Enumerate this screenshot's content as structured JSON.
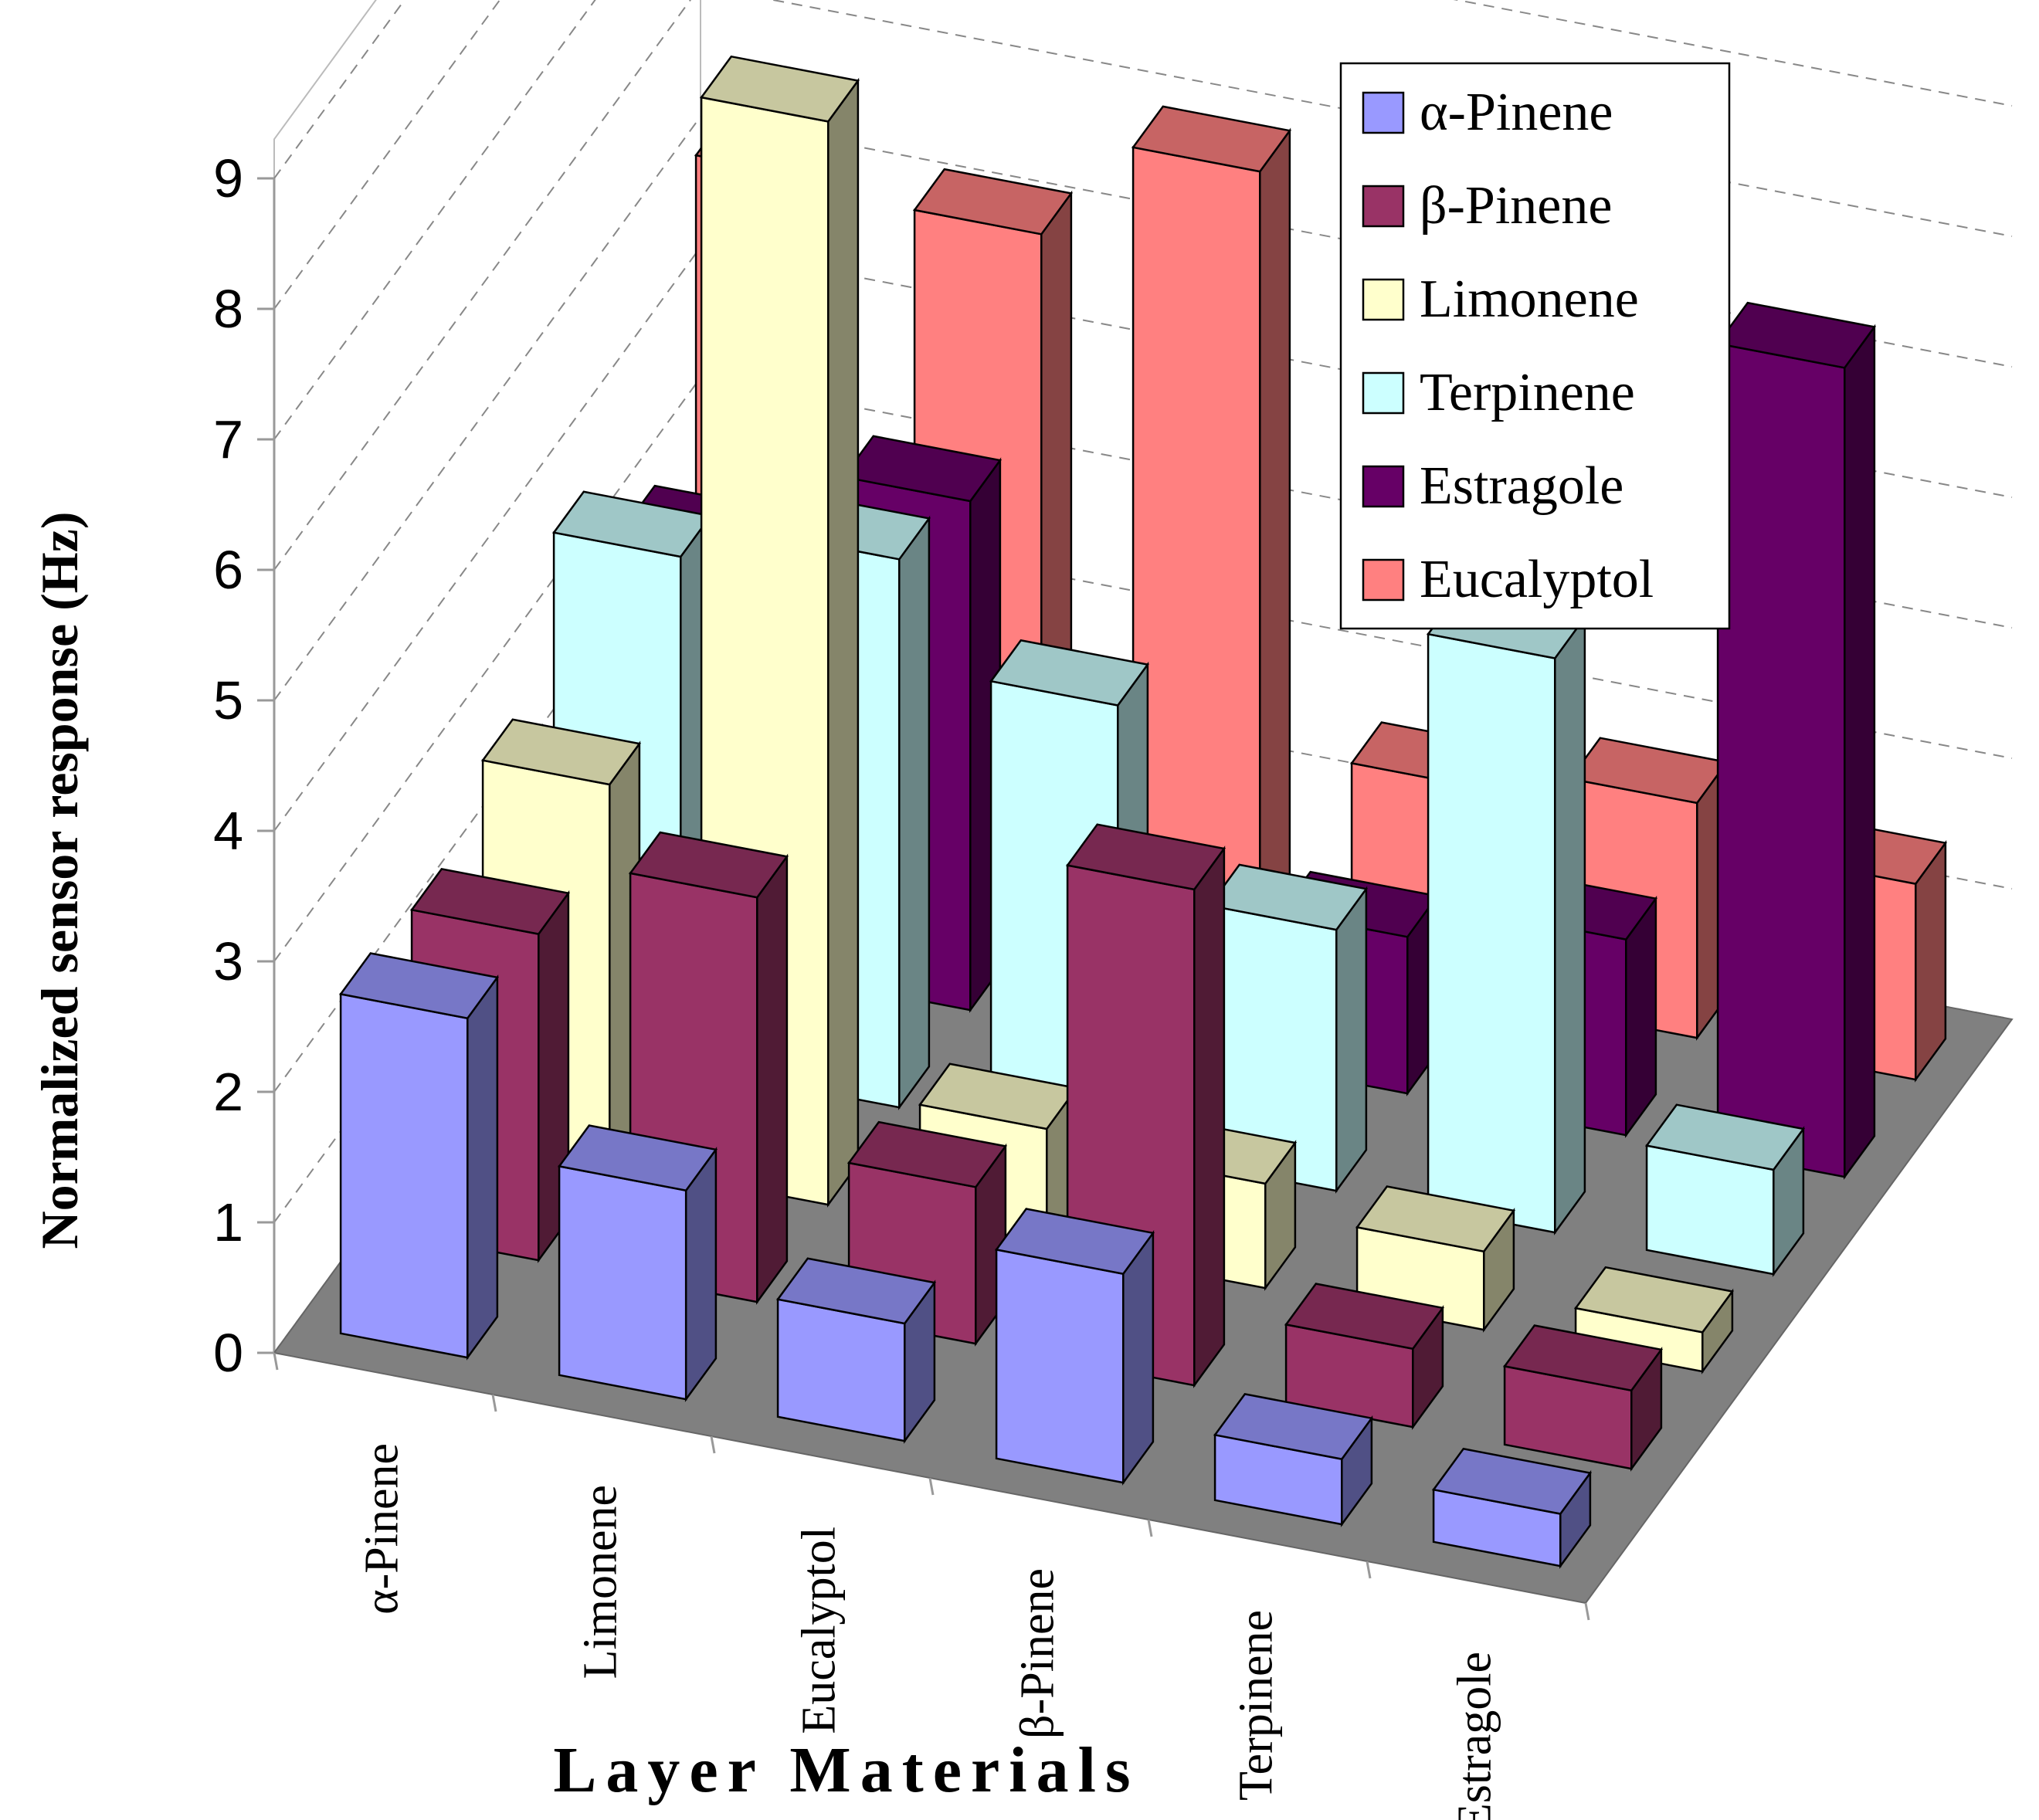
{
  "chart_data": {
    "type": "bar",
    "subtype": "3d-bar",
    "title": "",
    "xlabel": "Layer Materials",
    "ylabel": "Normalized sensor response (Hz)",
    "ylim": [
      0,
      9
    ],
    "yticks": [
      "0",
      "1",
      "2",
      "3",
      "4",
      "5",
      "6",
      "7",
      "8",
      "9"
    ],
    "grid": true,
    "legend_position": "top-right",
    "categories": [
      "α-Pinene",
      "Limonene",
      "Eucalyptol",
      "β-Pinene",
      "Terpinene",
      "Estragole"
    ],
    "series": [
      {
        "name": "α-Pinene",
        "color": "#9999ff",
        "values": [
          2.6,
          1.6,
          0.9,
          1.6,
          0.5,
          0.4
        ]
      },
      {
        "name": "β-Pinene",
        "color": "#993366",
        "values": [
          2.5,
          3.1,
          1.2,
          3.8,
          0.6,
          0.6
        ]
      },
      {
        "name": "Limonene",
        "color": "#ffffcc",
        "values": [
          2.9,
          8.3,
          0.9,
          0.8,
          0.6,
          0.3
        ]
      },
      {
        "name": "Terpinene",
        "color": "#ccffff",
        "values": [
          3.9,
          4.2,
          3.4,
          2.0,
          4.4,
          0.8
        ]
      },
      {
        "name": "Estragole",
        "color": "#660066",
        "values": [
          3.2,
          3.9,
          0.8,
          1.2,
          1.5,
          6.2
        ]
      },
      {
        "name": "Eucalyptol",
        "color": "#ff8080",
        "values": [
          5.3,
          5.2,
          6.0,
          1.6,
          1.8,
          1.5
        ]
      }
    ]
  }
}
